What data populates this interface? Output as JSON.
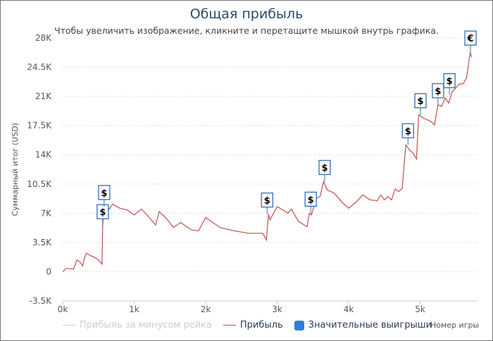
{
  "chart_data": {
    "type": "line",
    "title": "Общая прибыль",
    "subtitle": "Чтобы увеличить изображение, кликните и перетащите мышкой внутрь графика.",
    "xlabel": "Номер игры",
    "ylabel": "Суммарный итог (USD)",
    "xlim": [
      0,
      5800
    ],
    "ylim": [
      -3500,
      28000
    ],
    "x_ticks": [
      "0k",
      "1k",
      "2k",
      "3k",
      "4k",
      "5k"
    ],
    "y_ticks": [
      "28K",
      "24.5K",
      "21K",
      "17.5K",
      "14K",
      "10.5K",
      "7K",
      "3.5K",
      "0",
      "-3.5K"
    ],
    "grid": "horizontal dotted",
    "legend_placement": "bottom",
    "legend": [
      {
        "name": "Прибыль за минусом рейка",
        "color": "#cccccc",
        "active": false
      },
      {
        "name": "Прибыль",
        "color": "#c0504d",
        "active": true
      },
      {
        "name": "Значительные выигрыши",
        "color": "#2f7fd8",
        "active": true
      }
    ],
    "series": [
      {
        "name": "Прибыль",
        "color": "#c0504d",
        "points": [
          [
            0,
            0
          ],
          [
            50,
            400
          ],
          [
            150,
            300
          ],
          [
            200,
            1400
          ],
          [
            250,
            1100
          ],
          [
            280,
            700
          ],
          [
            300,
            1500
          ],
          [
            330,
            2200
          ],
          [
            400,
            1900
          ],
          [
            450,
            1700
          ],
          [
            500,
            1400
          ],
          [
            550,
            900
          ],
          [
            560,
            5500
          ],
          [
            580,
            7800
          ],
          [
            620,
            8000
          ],
          [
            650,
            7500
          ],
          [
            700,
            8100
          ],
          [
            800,
            7600
          ],
          [
            900,
            7400
          ],
          [
            1000,
            6800
          ],
          [
            1100,
            7500
          ],
          [
            1200,
            6600
          ],
          [
            1300,
            5600
          ],
          [
            1350,
            7200
          ],
          [
            1450,
            6400
          ],
          [
            1550,
            5300
          ],
          [
            1650,
            5900
          ],
          [
            1800,
            5000
          ],
          [
            1900,
            4900
          ],
          [
            2000,
            6500
          ],
          [
            2100,
            5900
          ],
          [
            2200,
            5300
          ],
          [
            2400,
            4900
          ],
          [
            2600,
            4600
          ],
          [
            2800,
            4600
          ],
          [
            2850,
            3800
          ],
          [
            2880,
            6900
          ],
          [
            2900,
            6200
          ],
          [
            3000,
            7800
          ],
          [
            3100,
            7300
          ],
          [
            3150,
            7000
          ],
          [
            3200,
            7500
          ],
          [
            3300,
            6000
          ],
          [
            3380,
            5600
          ],
          [
            3420,
            5400
          ],
          [
            3450,
            7000
          ],
          [
            3480,
            6800
          ],
          [
            3550,
            8800
          ],
          [
            3600,
            9000
          ],
          [
            3650,
            10800
          ],
          [
            3700,
            9800
          ],
          [
            3800,
            9400
          ],
          [
            3900,
            8400
          ],
          [
            4000,
            7600
          ],
          [
            4100,
            8300
          ],
          [
            4200,
            9200
          ],
          [
            4300,
            8600
          ],
          [
            4400,
            8500
          ],
          [
            4450,
            9200
          ],
          [
            4500,
            8600
          ],
          [
            4550,
            9000
          ],
          [
            4600,
            8600
          ],
          [
            4650,
            9900
          ],
          [
            4700,
            9600
          ],
          [
            4750,
            10000
          ],
          [
            4800,
            15200
          ],
          [
            4850,
            14600
          ],
          [
            4900,
            14200
          ],
          [
            4950,
            13500
          ],
          [
            4980,
            18800
          ],
          [
            5050,
            18400
          ],
          [
            5150,
            18000
          ],
          [
            5200,
            17600
          ],
          [
            5250,
            20000
          ],
          [
            5300,
            19800
          ],
          [
            5350,
            20800
          ],
          [
            5400,
            20200
          ],
          [
            5450,
            21600
          ],
          [
            5500,
            22000
          ],
          [
            5550,
            22500
          ],
          [
            5600,
            22500
          ],
          [
            5650,
            23200
          ],
          [
            5700,
            26300
          ],
          [
            5720,
            25700
          ]
        ]
      }
    ],
    "markers": [
      {
        "x": 560,
        "y": 5500,
        "label": "$"
      },
      {
        "x": 580,
        "y": 7800,
        "label": "$"
      },
      {
        "x": 2860,
        "y": 6900,
        "label": "$"
      },
      {
        "x": 3470,
        "y": 7000,
        "label": "$"
      },
      {
        "x": 3665,
        "y": 10800,
        "label": "$"
      },
      {
        "x": 4830,
        "y": 15200,
        "label": "$"
      },
      {
        "x": 5005,
        "y": 18800,
        "label": "$"
      },
      {
        "x": 5250,
        "y": 20000,
        "label": "$"
      },
      {
        "x": 5410,
        "y": 21200,
        "label": "$"
      },
      {
        "x": 5705,
        "y": 26300,
        "label": "€"
      }
    ]
  }
}
